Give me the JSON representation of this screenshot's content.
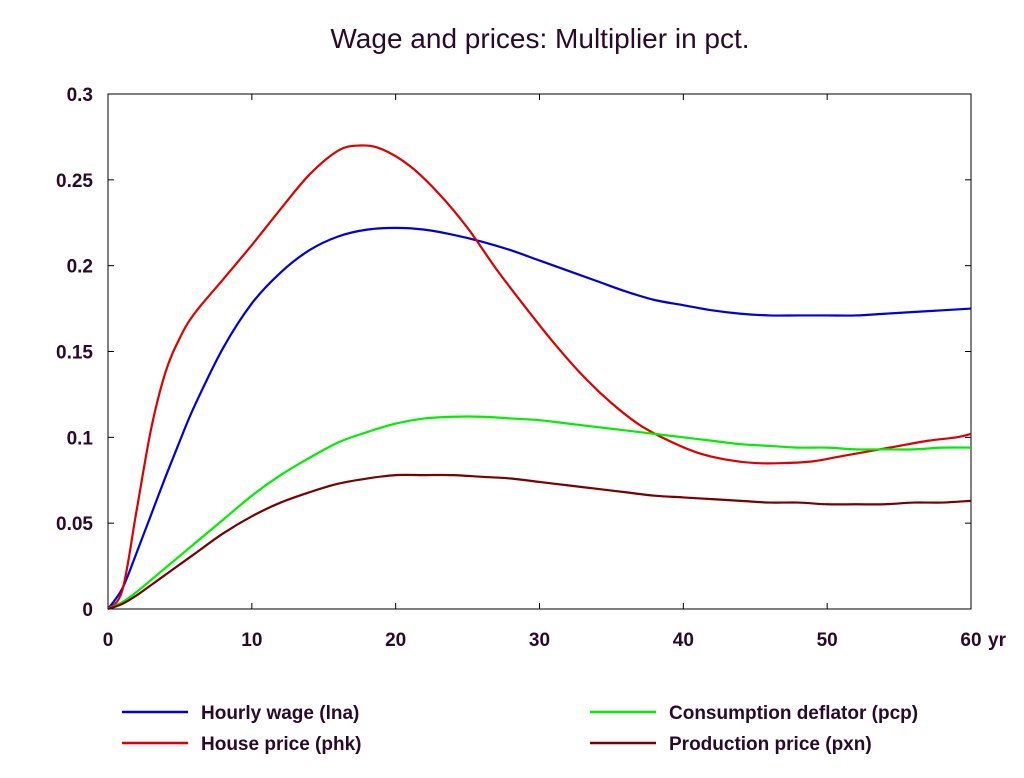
{
  "chart_data": {
    "type": "line",
    "title": "Wage and prices: Multiplier in pct.",
    "x_unit_label": "yr",
    "xlim": [
      0,
      60
    ],
    "ylim": [
      0,
      0.3
    ],
    "x_ticks": [
      0,
      10,
      20,
      30,
      40,
      50,
      60
    ],
    "x_tick_labels": [
      "0",
      "10",
      "20",
      "30",
      "40",
      "50",
      "60"
    ],
    "y_ticks": [
      0,
      0.05,
      0.1,
      0.15,
      0.2,
      0.25,
      0.3
    ],
    "y_tick_labels": [
      "0",
      "0.05",
      "0.1",
      "0.15",
      "0.2",
      "0.25",
      "0.3"
    ],
    "grid": false,
    "legend_position": "bottom",
    "series": [
      {
        "name": "Hourly wage (lna)",
        "color": "#0000dd",
        "x": [
          0,
          1,
          2,
          3,
          4,
          5,
          6,
          8,
          10,
          12,
          14,
          16,
          18,
          20,
          22,
          24,
          26,
          28,
          30,
          32,
          34,
          36,
          38,
          40,
          42,
          44,
          46,
          48,
          50,
          52,
          54,
          56,
          58,
          60
        ],
        "y": [
          0,
          0.012,
          0.033,
          0.055,
          0.077,
          0.098,
          0.118,
          0.152,
          0.178,
          0.196,
          0.209,
          0.217,
          0.221,
          0.222,
          0.221,
          0.218,
          0.214,
          0.209,
          0.203,
          0.197,
          0.191,
          0.185,
          0.18,
          0.177,
          0.174,
          0.172,
          0.171,
          0.171,
          0.171,
          0.171,
          0.172,
          0.173,
          0.174,
          0.175
        ]
      },
      {
        "name": "House price (phk)",
        "color": "#dd0000",
        "x": [
          0,
          1,
          2,
          3,
          4,
          5,
          6,
          8,
          10,
          12,
          14,
          16,
          17.5,
          19,
          21,
          23,
          25,
          27,
          29,
          31,
          33,
          35,
          37,
          39,
          41,
          43,
          45,
          47,
          49,
          51,
          53,
          55,
          57,
          59,
          60
        ],
        "y": [
          0,
          0.011,
          0.058,
          0.105,
          0.138,
          0.158,
          0.172,
          0.192,
          0.212,
          0.233,
          0.253,
          0.267,
          0.27,
          0.268,
          0.258,
          0.242,
          0.222,
          0.198,
          0.176,
          0.155,
          0.136,
          0.12,
          0.107,
          0.098,
          0.091,
          0.087,
          0.085,
          0.085,
          0.086,
          0.089,
          0.092,
          0.095,
          0.098,
          0.1,
          0.102
        ]
      },
      {
        "name": "Consumption deflator (pcp)",
        "color": "#00ee00",
        "x": [
          0,
          1,
          2,
          4,
          6,
          8,
          10,
          12,
          14,
          16,
          18,
          20,
          22,
          24,
          26,
          28,
          30,
          32,
          34,
          36,
          38,
          40,
          42,
          44,
          46,
          48,
          50,
          52,
          54,
          56,
          58,
          60
        ],
        "y": [
          0,
          0.004,
          0.01,
          0.024,
          0.038,
          0.052,
          0.066,
          0.078,
          0.088,
          0.097,
          0.103,
          0.108,
          0.111,
          0.112,
          0.112,
          0.111,
          0.11,
          0.108,
          0.106,
          0.104,
          0.102,
          0.1,
          0.098,
          0.096,
          0.095,
          0.094,
          0.094,
          0.093,
          0.093,
          0.093,
          0.094,
          0.094
        ]
      },
      {
        "name": "Production price (pxn)",
        "color": "#770000",
        "x": [
          0,
          1,
          2,
          4,
          6,
          8,
          10,
          12,
          14,
          16,
          18,
          20,
          22,
          24,
          26,
          28,
          30,
          32,
          34,
          36,
          38,
          40,
          42,
          44,
          46,
          48,
          50,
          52,
          54,
          56,
          58,
          60
        ],
        "y": [
          0,
          0.003,
          0.008,
          0.02,
          0.032,
          0.044,
          0.054,
          0.062,
          0.068,
          0.073,
          0.076,
          0.078,
          0.078,
          0.078,
          0.077,
          0.076,
          0.074,
          0.072,
          0.07,
          0.068,
          0.066,
          0.065,
          0.064,
          0.063,
          0.062,
          0.062,
          0.061,
          0.061,
          0.061,
          0.062,
          0.062,
          0.063
        ]
      }
    ]
  }
}
